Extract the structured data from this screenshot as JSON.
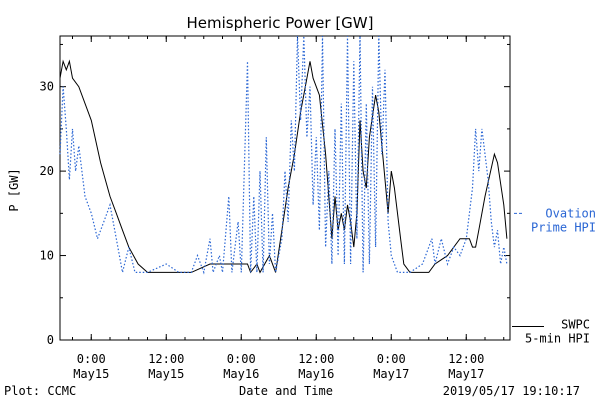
{
  "colors": {
    "observed": "#000000",
    "model": "#2a66d4",
    "background": "#ffffff"
  },
  "chart_data": {
    "type": "line",
    "title": "Hemispheric Power [GW]",
    "xlabel": "Date and Time",
    "ylabel": "P [GW]",
    "ylim": [
      0,
      36
    ],
    "xlim": [
      "2019-05-14T19:00",
      "2019-05-17T19:00"
    ],
    "yticks": [
      0,
      10,
      20,
      30
    ],
    "xticks": [
      {
        "t": "2019-05-15T00:00",
        "line1": "0:00",
        "line2": "May15"
      },
      {
        "t": "2019-05-15T12:00",
        "line1": "12:00",
        "line2": "May15"
      },
      {
        "t": "2019-05-16T00:00",
        "line1": "0:00",
        "line2": "May16"
      },
      {
        "t": "2019-05-16T12:00",
        "line1": "12:00",
        "line2": "May16"
      },
      {
        "t": "2019-05-17T00:00",
        "line1": "0:00",
        "line2": "May17"
      },
      {
        "t": "2019-05-17T12:00",
        "line1": "12:00",
        "line2": "May17"
      }
    ],
    "grid": false,
    "series": [
      {
        "name": "SWPC 5-min HPI",
        "style": "solid",
        "color": "#000000",
        "label_lines": [
          "SWPC",
          "5-min HPI"
        ],
        "points": [
          [
            "2019-05-14T19:00",
            31
          ],
          [
            "2019-05-14T19:30",
            33
          ],
          [
            "2019-05-14T20:00",
            32
          ],
          [
            "2019-05-14T20:30",
            33
          ],
          [
            "2019-05-14T21:00",
            31
          ],
          [
            "2019-05-14T22:00",
            30
          ],
          [
            "2019-05-15T00:00",
            26
          ],
          [
            "2019-05-15T01:30",
            21
          ],
          [
            "2019-05-15T03:00",
            17
          ],
          [
            "2019-05-15T04:00",
            15
          ],
          [
            "2019-05-15T05:00",
            13
          ],
          [
            "2019-05-15T06:00",
            11
          ],
          [
            "2019-05-15T07:30",
            9
          ],
          [
            "2019-05-15T09:00",
            8
          ],
          [
            "2019-05-15T12:00",
            8
          ],
          [
            "2019-05-15T16:00",
            8
          ],
          [
            "2019-05-15T19:00",
            9
          ],
          [
            "2019-05-15T22:00",
            9
          ],
          [
            "2019-05-16T01:00",
            9
          ],
          [
            "2019-05-16T01:30",
            8
          ],
          [
            "2019-05-16T02:30",
            9
          ],
          [
            "2019-05-16T03:00",
            8
          ],
          [
            "2019-05-16T04:30",
            10
          ],
          [
            "2019-05-16T05:30",
            8
          ],
          [
            "2019-05-16T06:30",
            13
          ],
          [
            "2019-05-16T07:30",
            18
          ],
          [
            "2019-05-16T08:30",
            22
          ],
          [
            "2019-05-16T09:30",
            27
          ],
          [
            "2019-05-16T10:30",
            31
          ],
          [
            "2019-05-16T11:00",
            33
          ],
          [
            "2019-05-16T11:30",
            31
          ],
          [
            "2019-05-16T12:30",
            29
          ],
          [
            "2019-05-16T13:30",
            22
          ],
          [
            "2019-05-16T14:00",
            17
          ],
          [
            "2019-05-16T14:30",
            12
          ],
          [
            "2019-05-16T15:00",
            17
          ],
          [
            "2019-05-16T15:30",
            13
          ],
          [
            "2019-05-16T16:00",
            15
          ],
          [
            "2019-05-16T16:30",
            13
          ],
          [
            "2019-05-16T17:00",
            16
          ],
          [
            "2019-05-16T17:30",
            14
          ],
          [
            "2019-05-16T18:00",
            11
          ],
          [
            "2019-05-16T18:30",
            15
          ],
          [
            "2019-05-16T19:00",
            26
          ],
          [
            "2019-05-16T19:30",
            20
          ],
          [
            "2019-05-16T20:00",
            18
          ],
          [
            "2019-05-16T20:30",
            24
          ],
          [
            "2019-05-16T21:30",
            29
          ],
          [
            "2019-05-16T22:00",
            27
          ],
          [
            "2019-05-16T22:30",
            23
          ],
          [
            "2019-05-16T23:30",
            15
          ],
          [
            "2019-05-17T00:00",
            20
          ],
          [
            "2019-05-17T00:30",
            18
          ],
          [
            "2019-05-17T01:30",
            12
          ],
          [
            "2019-05-17T02:00",
            9
          ],
          [
            "2019-05-17T03:00",
            8
          ],
          [
            "2019-05-17T06:00",
            8
          ],
          [
            "2019-05-17T07:00",
            9
          ],
          [
            "2019-05-17T09:00",
            10
          ],
          [
            "2019-05-17T11:00",
            12
          ],
          [
            "2019-05-17T12:30",
            12
          ],
          [
            "2019-05-17T13:00",
            11
          ],
          [
            "2019-05-17T13:30",
            11
          ],
          [
            "2019-05-17T14:00",
            13
          ],
          [
            "2019-05-17T15:00",
            17
          ],
          [
            "2019-05-17T16:30",
            22
          ],
          [
            "2019-05-17T17:00",
            21
          ],
          [
            "2019-05-17T18:00",
            16
          ],
          [
            "2019-05-17T18:30",
            12
          ]
        ]
      },
      {
        "name": "Ovation Prime HPI",
        "style": "dotted",
        "color": "#2a66d4",
        "label_lines": [
          "Ovation",
          "Prime HPI"
        ],
        "points": [
          [
            "2019-05-14T19:00",
            22
          ],
          [
            "2019-05-14T19:30",
            30
          ],
          [
            "2019-05-14T20:00",
            25
          ],
          [
            "2019-05-14T20:30",
            19
          ],
          [
            "2019-05-14T21:00",
            25
          ],
          [
            "2019-05-14T21:30",
            20
          ],
          [
            "2019-05-14T22:00",
            23
          ],
          [
            "2019-05-14T23:00",
            17
          ],
          [
            "2019-05-15T00:00",
            15
          ],
          [
            "2019-05-15T01:00",
            12
          ],
          [
            "2019-05-15T02:00",
            14
          ],
          [
            "2019-05-15T03:00",
            16
          ],
          [
            "2019-05-15T04:00",
            12
          ],
          [
            "2019-05-15T05:00",
            8
          ],
          [
            "2019-05-15T06:00",
            11
          ],
          [
            "2019-05-15T07:00",
            8
          ],
          [
            "2019-05-15T09:00",
            8
          ],
          [
            "2019-05-15T12:00",
            9
          ],
          [
            "2019-05-15T14:00",
            8
          ],
          [
            "2019-05-15T16:00",
            8
          ],
          [
            "2019-05-15T17:00",
            10
          ],
          [
            "2019-05-15T18:00",
            8
          ],
          [
            "2019-05-15T19:00",
            12
          ],
          [
            "2019-05-15T19:30",
            8
          ],
          [
            "2019-05-15T20:30",
            10
          ],
          [
            "2019-05-15T21:00",
            8
          ],
          [
            "2019-05-15T22:00",
            17
          ],
          [
            "2019-05-15T22:30",
            8
          ],
          [
            "2019-05-15T23:30",
            14
          ],
          [
            "2019-05-16T00:00",
            8
          ],
          [
            "2019-05-16T01:00",
            33
          ],
          [
            "2019-05-16T01:30",
            8
          ],
          [
            "2019-05-16T02:00",
            17
          ],
          [
            "2019-05-16T02:30",
            8
          ],
          [
            "2019-05-16T03:00",
            20
          ],
          [
            "2019-05-16T03:30",
            8
          ],
          [
            "2019-05-16T04:00",
            24
          ],
          [
            "2019-05-16T04:30",
            9
          ],
          [
            "2019-05-16T05:00",
            15
          ],
          [
            "2019-05-16T05:30",
            8
          ],
          [
            "2019-05-16T06:30",
            12
          ],
          [
            "2019-05-16T07:00",
            20
          ],
          [
            "2019-05-16T07:30",
            14
          ],
          [
            "2019-05-16T08:00",
            26
          ],
          [
            "2019-05-16T08:30",
            20
          ],
          [
            "2019-05-16T09:00",
            36
          ],
          [
            "2019-05-16T09:30",
            26
          ],
          [
            "2019-05-16T10:00",
            36
          ],
          [
            "2019-05-16T10:30",
            24
          ],
          [
            "2019-05-16T11:00",
            30
          ],
          [
            "2019-05-16T11:30",
            16
          ],
          [
            "2019-05-16T12:00",
            24
          ],
          [
            "2019-05-16T12:30",
            13
          ],
          [
            "2019-05-16T13:00",
            36
          ],
          [
            "2019-05-16T13:30",
            11
          ],
          [
            "2019-05-16T14:00",
            20
          ],
          [
            "2019-05-16T14:30",
            9
          ],
          [
            "2019-05-16T15:00",
            25
          ],
          [
            "2019-05-16T15:30",
            10
          ],
          [
            "2019-05-16T16:00",
            28
          ],
          [
            "2019-05-16T16:30",
            9
          ],
          [
            "2019-05-16T17:00",
            36
          ],
          [
            "2019-05-16T17:30",
            9
          ],
          [
            "2019-05-16T18:00",
            33
          ],
          [
            "2019-05-16T18:30",
            12
          ],
          [
            "2019-05-16T19:00",
            36
          ],
          [
            "2019-05-16T19:30",
            8
          ],
          [
            "2019-05-16T20:00",
            28
          ],
          [
            "2019-05-16T20:30",
            9
          ],
          [
            "2019-05-16T21:00",
            30
          ],
          [
            "2019-05-16T21:30",
            11
          ],
          [
            "2019-05-16T22:00",
            36
          ],
          [
            "2019-05-16T22:30",
            22
          ],
          [
            "2019-05-16T23:00",
            32
          ],
          [
            "2019-05-16T23:30",
            14
          ],
          [
            "2019-05-17T00:00",
            10
          ],
          [
            "2019-05-17T01:00",
            8
          ],
          [
            "2019-05-17T03:00",
            8
          ],
          [
            "2019-05-17T05:00",
            9
          ],
          [
            "2019-05-17T06:30",
            12
          ],
          [
            "2019-05-17T07:00",
            9
          ],
          [
            "2019-05-17T08:00",
            12
          ],
          [
            "2019-05-17T09:00",
            9
          ],
          [
            "2019-05-17T10:00",
            11
          ],
          [
            "2019-05-17T11:00",
            10
          ],
          [
            "2019-05-17T12:00",
            12
          ],
          [
            "2019-05-17T13:00",
            18
          ],
          [
            "2019-05-17T13:30",
            25
          ],
          [
            "2019-05-17T14:00",
            20
          ],
          [
            "2019-05-17T14:30",
            25
          ],
          [
            "2019-05-17T15:00",
            22
          ],
          [
            "2019-05-17T15:30",
            19
          ],
          [
            "2019-05-17T16:00",
            14
          ],
          [
            "2019-05-17T16:30",
            11
          ],
          [
            "2019-05-17T17:00",
            13
          ],
          [
            "2019-05-17T17:30",
            9
          ],
          [
            "2019-05-17T18:00",
            11
          ],
          [
            "2019-05-17T18:30",
            9
          ]
        ]
      }
    ]
  },
  "footer": {
    "left": "Plot: CCMC",
    "right": "2019/05/17 19:10:17"
  }
}
